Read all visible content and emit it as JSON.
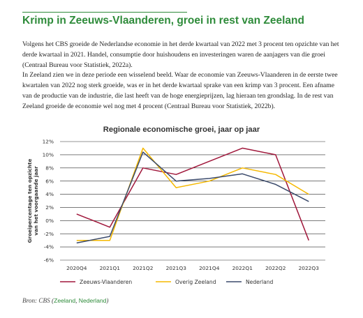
{
  "heading": "Krimp in Zeeuws-Vlaanderen, groei in rest van Zeeland",
  "paragraphs": [
    "Volgens het CBS groeide de Nederlandse economie in het derde kwartaal van 2022 met 3 procent ten opzichte van het derde kwartaal in 2021. Handel, consumptie door huishoudens en investeringen waren de aanjagers van die groei (Centraal Bureau voor Statistiek, 2022a).",
    "In Zeeland zien we in deze periode een wisselend beeld. Waar de economie van Zeeuws-Vlaanderen in de eerste twee kwartalen van 2022 nog sterk groeide, was er in het derde kwartaal sprake van een krimp van 3 procent. Een afname van de productie van de industrie, die last heeft van de hoge energieprijzen, lag hieraan ten grondslag. In de rest van Zeeland groeide de economie wel nog met 4 procent (Centraal Bureau voor Statistiek, 2022b)."
  ],
  "source": {
    "prefix": "Bron: CBS (",
    "link1": "Zeeland",
    "sep": ", ",
    "link2": "Nederland",
    "suffix": ")"
  },
  "chart_data": {
    "type": "line",
    "title": "Regionale economische groei, jaar op jaar",
    "xlabel": "",
    "ylabel": "Groeipercentage ten opzichte van het voorgaande jaar",
    "categories": [
      "2020Q4",
      "2021Q1",
      "2021Q2",
      "2021Q3",
      "2021Q4",
      "2022Q1",
      "2022Q2",
      "2022Q3"
    ],
    "ylim": [
      -6,
      12
    ],
    "yticks": [
      -6,
      -4,
      -2,
      0,
      2,
      4,
      6,
      8,
      10,
      12
    ],
    "ytick_labels": [
      "-6%",
      "-4%",
      "-2%",
      "0%",
      "2%",
      "4%",
      "6%",
      "8%",
      "10%",
      "12%"
    ],
    "grid": true,
    "legend_position": "bottom",
    "series": [
      {
        "name": "Zeeuws-Vlaanderen",
        "color": "#a0173b",
        "values": [
          1,
          -1,
          8,
          7,
          9,
          11,
          10,
          -3
        ]
      },
      {
        "name": "Overig Zeeland",
        "color": "#f5b800",
        "values": [
          -3,
          -3,
          11,
          5,
          6,
          8,
          7,
          4
        ]
      },
      {
        "name": "Nederland",
        "color": "#3b4a6b",
        "values": [
          -3.4,
          -2.4,
          10.4,
          6,
          6.4,
          7.1,
          5.5,
          2.9
        ]
      }
    ]
  }
}
